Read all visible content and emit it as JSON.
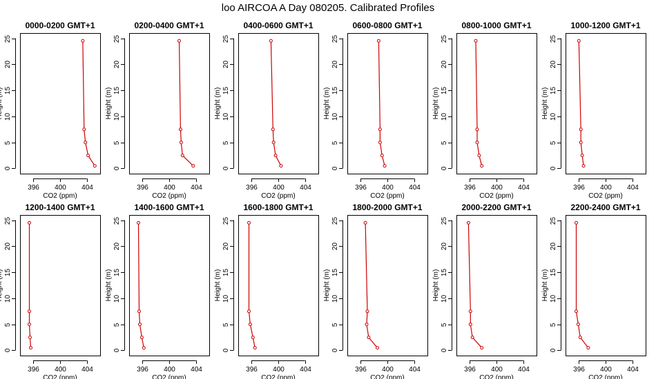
{
  "title": "loo AIRCOA A  Day 080205. Calibrated Profiles",
  "chart_data": {
    "type": "line",
    "xlabel": "CO2 (ppm)",
    "ylabel": "Height (m)",
    "xlim": [
      394,
      406
    ],
    "ylim": [
      -1,
      26
    ],
    "xticks": [
      396,
      400,
      404
    ],
    "yticks": [
      0,
      5,
      10,
      15,
      20,
      25
    ],
    "grid": false,
    "line_color": "#cc0000",
    "heights": [
      0.5,
      2.5,
      5,
      7.5,
      24.5
    ],
    "panels": [
      {
        "title": "0000-0200 GMT+1",
        "x": [
          405.2,
          404.2,
          403.8,
          403.6,
          403.4
        ]
      },
      {
        "title": "0200-0400 GMT+1",
        "x": [
          403.6,
          402.0,
          401.8,
          401.7,
          401.5
        ]
      },
      {
        "title": "0400-0600 GMT+1",
        "x": [
          400.4,
          399.6,
          399.3,
          399.2,
          398.9
        ]
      },
      {
        "title": "0600-0800 GMT+1",
        "x": [
          399.6,
          399.2,
          398.9,
          398.9,
          398.7
        ]
      },
      {
        "title": "0800-1000 GMT+1",
        "x": [
          397.8,
          397.4,
          397.1,
          397.1,
          396.9
        ]
      },
      {
        "title": "1000-1200 GMT+1",
        "x": [
          396.7,
          396.5,
          396.3,
          396.3,
          396.0
        ]
      },
      {
        "title": "1200-1400 GMT+1",
        "x": [
          395.6,
          395.5,
          395.4,
          395.4,
          395.4
        ]
      },
      {
        "title": "1400-1600 GMT+1",
        "x": [
          396.2,
          395.9,
          395.6,
          395.5,
          395.4
        ]
      },
      {
        "title": "1600-1800 GMT+1",
        "x": [
          396.5,
          396.2,
          395.8,
          395.6,
          395.6
        ]
      },
      {
        "title": "1800-2000 GMT+1",
        "x": [
          398.5,
          397.2,
          396.9,
          397.0,
          396.7
        ]
      },
      {
        "title": "2000-2200 GMT+1",
        "x": [
          397.8,
          396.4,
          396.1,
          396.1,
          395.8
        ]
      },
      {
        "title": "2200-2400 GMT+1",
        "x": [
          397.4,
          396.2,
          395.9,
          395.6,
          395.6
        ]
      }
    ]
  }
}
